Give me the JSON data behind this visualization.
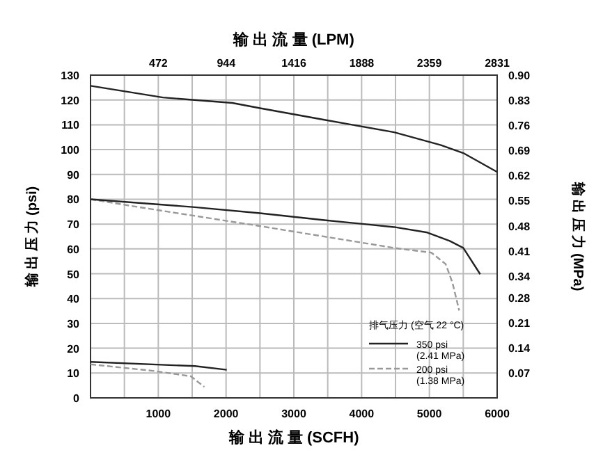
{
  "chart_data": {
    "type": "line",
    "xlabel": "输 出 流 量 (SCFH)",
    "x2label": "输 出 流 量 (LPM)",
    "ylabel": "输 出 压 力 (psi)",
    "y2label": "输 出 压 力 (MPa)",
    "legend_title": "排气压力 (空气 22 °C)",
    "xlim": [
      0,
      6000
    ],
    "xticks": [
      {
        "value": 500,
        "label": null
      },
      1000,
      {
        "value": 1500,
        "label": null
      },
      2000,
      {
        "value": 2500,
        "label": null
      },
      3000,
      {
        "value": 3500,
        "label": null
      },
      4000,
      {
        "value": 4500,
        "label": null
      },
      5000,
      {
        "value": 5500,
        "label": null
      },
      6000
    ],
    "x2lim": [
      0,
      2831
    ],
    "x2ticks": [
      472,
      944,
      1416,
      1888,
      2359,
      2831
    ],
    "ylim": [
      0,
      130
    ],
    "yticks": [
      0,
      10,
      20,
      30,
      40,
      50,
      60,
      70,
      80,
      90,
      100,
      110,
      120,
      130
    ],
    "y2lim": [
      0,
      0.9
    ],
    "y2ticks": [
      0.07,
      0.14,
      0.21,
      0.28,
      0.34,
      0.41,
      0.48,
      0.55,
      0.62,
      0.69,
      0.76,
      0.83,
      {
        "value": 0.9,
        "label": "0.90"
      }
    ],
    "grid": true,
    "legend": "bottom right",
    "marker": "none",
    "series": [
      {
        "name": "350 psi\n(2.41 MPa)",
        "color": "#222222",
        "line_style": "solid",
        "x": [
          0,
          1068,
          2094,
          2500,
          3450,
          4480,
          5170,
          5500,
          6000
        ],
        "values": [
          125.7,
          121,
          118.8,
          116.7,
          112,
          107,
          101.8,
          98.6,
          91
        ]
      },
      {
        "name": "200 psi\n(1.38 MPa)",
        "color": "#999999",
        "line_style": "dashed",
        "x": [
          0,
          720,
          2500,
          4480,
          5030,
          5240,
          5340,
          5440
        ],
        "values": [
          80,
          76.8,
          69.2,
          60.4,
          58.5,
          53.9,
          46.4,
          35.2
        ]
      },
      {
        "color": "#222222",
        "line_style": "solid",
        "x": [
          0,
          1540,
          2500,
          3450,
          4480,
          4970,
          5300,
          5500,
          5750
        ],
        "values": [
          80,
          76.8,
          74.4,
          71.6,
          68.8,
          66.6,
          63.2,
          60.4,
          49.8
        ]
      },
      {
        "color": "#222222",
        "line_style": "solid",
        "x": [
          0,
          1540,
          2010
        ],
        "values": [
          14.5,
          12.8,
          11.3
        ]
      },
      {
        "color": "#999999",
        "line_style": "dashed",
        "x": [
          0,
          920,
          1480,
          1680
        ],
        "values": [
          13.5,
          10.9,
          8.7,
          4.4
        ]
      }
    ]
  }
}
